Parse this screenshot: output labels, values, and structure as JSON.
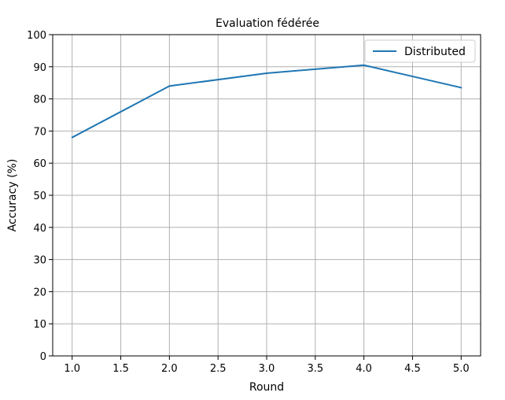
{
  "chart_data": {
    "type": "line",
    "title": "Evaluation fédérée",
    "xlabel": "Round",
    "ylabel": "Accuracy (%)",
    "xlim": [
      0.8,
      5.2
    ],
    "ylim": [
      0,
      100
    ],
    "xticks": [
      "1.0",
      "1.5",
      "2.0",
      "2.5",
      "3.0",
      "3.5",
      "4.0",
      "4.5",
      "5.0"
    ],
    "yticks": [
      "0",
      "10",
      "20",
      "30",
      "40",
      "50",
      "60",
      "70",
      "80",
      "90",
      "100"
    ],
    "grid": true,
    "legend_position": "top-right",
    "series": [
      {
        "name": "Distributed",
        "color": "#1f77b4",
        "x": [
          1,
          2,
          3,
          4,
          5
        ],
        "y": [
          68,
          84,
          88,
          90.5,
          83.5
        ]
      }
    ]
  }
}
